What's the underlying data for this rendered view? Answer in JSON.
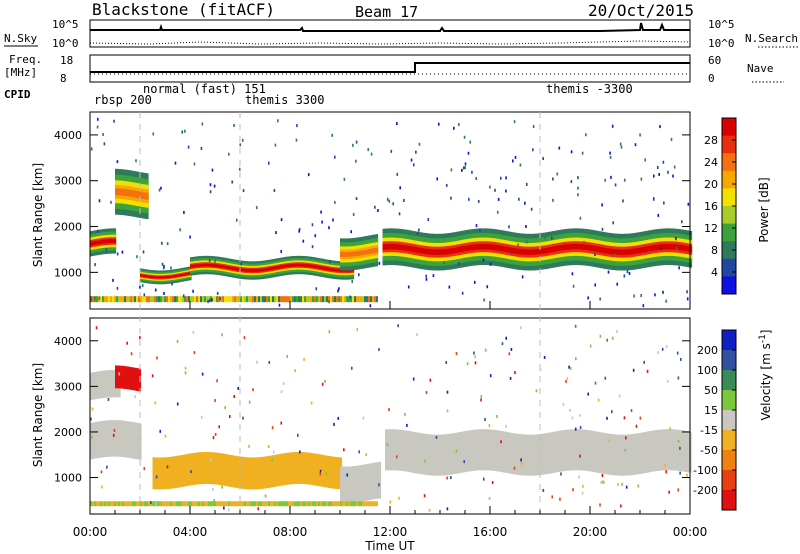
{
  "header": {
    "station": "Blackstone (fitACF)",
    "beam": "Beam 17",
    "date": "20/Oct/2015"
  },
  "left_labels": {
    "nsky": "N.Sky",
    "freq_line1": "Freq.",
    "freq_line2": "[MHz]",
    "cpid": "CPID",
    "nsky_ticks": [
      "10^5",
      "10^0"
    ],
    "freq_ticks": [
      "18",
      "8"
    ]
  },
  "right_labels": {
    "nsearch": "N.Search",
    "nave": "Nave",
    "nsearch_ticks": [
      "10^5",
      "10^0"
    ],
    "nave_ticks": [
      "60",
      "0"
    ]
  },
  "cpid_labels": {
    "rbsp": "rbsp 200",
    "normal": "normal (fast) 151",
    "themis1": "themis 3300",
    "themis2": "themis -3300"
  },
  "chart_data": [
    {
      "panel": "power",
      "type": "heatmap",
      "ylabel": "Slant Range [km]",
      "xlabel": "Time UT",
      "xlim": [
        "00:00",
        "24:00"
      ],
      "ylim": [
        200,
        4500
      ],
      "yticks": [
        "1000",
        "2000",
        "3000",
        "4000"
      ],
      "xticks": [
        "00:00",
        "04:00",
        "08:00",
        "12:00",
        "16:00",
        "20:00",
        "00:00"
      ],
      "colorbar": {
        "label": "Power [dB]",
        "ticks": [
          "4",
          "8",
          "12",
          "16",
          "20",
          "24",
          "28"
        ],
        "colors": [
          "#1010e0",
          "#2048a0",
          "#2f7a5a",
          "#3ca23c",
          "#a8cc28",
          "#f4e000",
          "#f4a800",
          "#f47010",
          "#e83010",
          "#d80000"
        ]
      },
      "bands": [
        {
          "t0": 0.0,
          "t1": 1.0,
          "r0": 1350,
          "r1": 1900,
          "level": "high"
        },
        {
          "t0": 1.0,
          "t1": 2.3,
          "r0": 2200,
          "r1": 3200,
          "level": "mid"
        },
        {
          "t0": 2.0,
          "t1": 4.0,
          "r0": 800,
          "r1": 1100,
          "level": "high"
        },
        {
          "t0": 4.0,
          "t1": 10.5,
          "r0": 900,
          "r1": 1300,
          "level": "high"
        },
        {
          "t0": 10.0,
          "t1": 11.5,
          "r0": 1100,
          "r1": 1800,
          "level": "mid"
        },
        {
          "t0": 11.7,
          "t1": 24.0,
          "r0": 1100,
          "r1": 1900,
          "level": "high"
        }
      ]
    },
    {
      "panel": "velocity",
      "type": "heatmap",
      "ylabel": "Slant Range [km]",
      "xlabel": "Time UT",
      "xlim": [
        "00:00",
        "24:00"
      ],
      "ylim": [
        200,
        4500
      ],
      "yticks": [
        "1000",
        "2000",
        "3000",
        "4000"
      ],
      "xticks": [
        "00:00",
        "04:00",
        "08:00",
        "12:00",
        "16:00",
        "20:00",
        "00:00"
      ],
      "colorbar": {
        "label_main": "Velocity",
        "label_unit": "[m s",
        "label_sup": "-1",
        "label_close": "]",
        "ticks": [
          "200",
          "100",
          "50",
          "15",
          "-15",
          "-50",
          "-100",
          "-200"
        ],
        "colors": [
          "#1020c0",
          "#3050a0",
          "#3a8a5a",
          "#7cc83c",
          "#c8c8c0",
          "#f0b020",
          "#f08010",
          "#e84010",
          "#e01010"
        ]
      },
      "bands": [
        {
          "t0": 0.0,
          "t1": 2.0,
          "r0": 1400,
          "r1": 2200,
          "v": "grey"
        },
        {
          "t0": 0.0,
          "t1": 1.2,
          "r0": 2700,
          "r1": 3300,
          "v": "grey"
        },
        {
          "t0": 1.0,
          "t1": 2.0,
          "r0": 2900,
          "r1": 3400,
          "v": "red"
        },
        {
          "t0": 2.5,
          "t1": 10.0,
          "r0": 800,
          "r1": 1500,
          "v": "orange"
        },
        {
          "t0": 10.0,
          "t1": 11.6,
          "r0": 500,
          "r1": 1300,
          "v": "grey"
        },
        {
          "t0": 11.8,
          "t1": 24.0,
          "r0": 1100,
          "r1": 2000,
          "v": "grey"
        }
      ]
    }
  ]
}
